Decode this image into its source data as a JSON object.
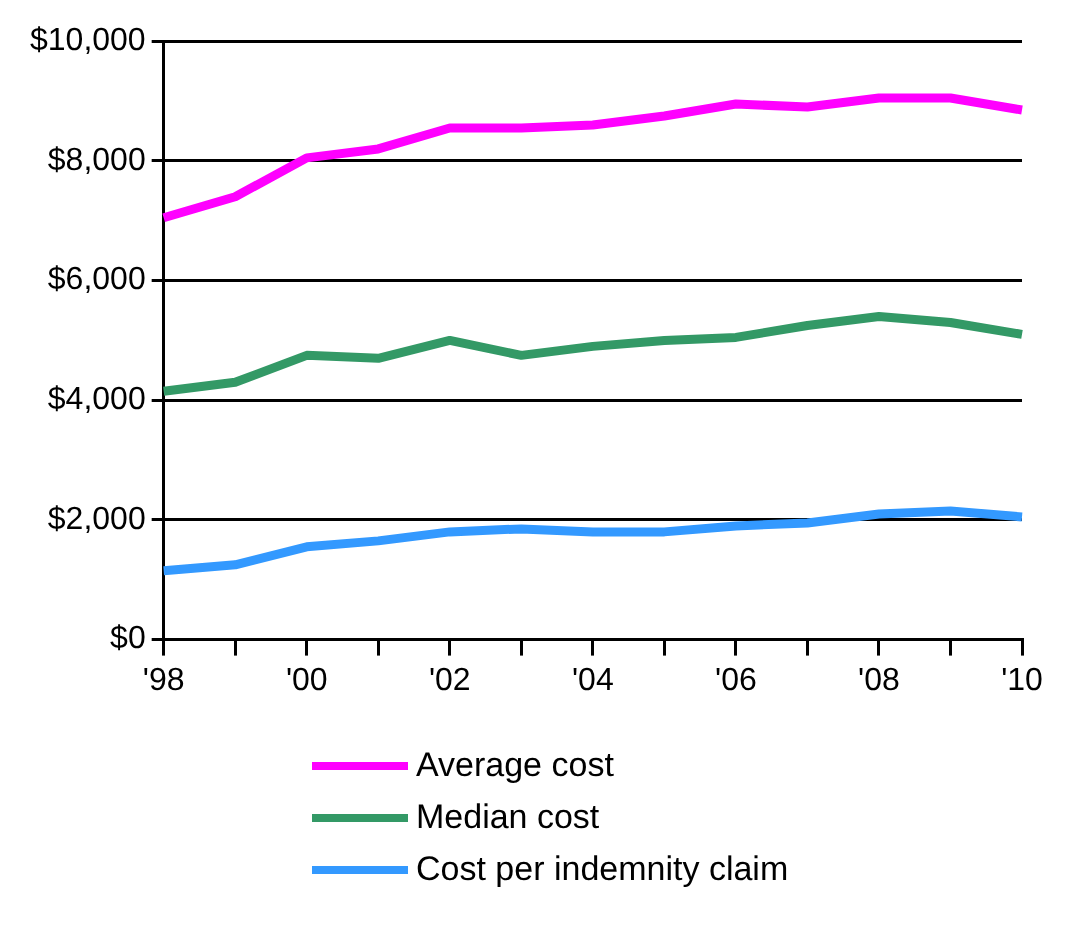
{
  "chart_data": {
    "type": "line",
    "categories": [
      "'98",
      null,
      "'00",
      null,
      "'02",
      null,
      "'04",
      null,
      "'06",
      null,
      "'08",
      null,
      "'10"
    ],
    "series": [
      {
        "name": "Average cost",
        "color": "#ff00ff",
        "values": [
          7050,
          7400,
          8050,
          8200,
          8550,
          8550,
          8600,
          8750,
          8950,
          8900,
          9050,
          9050,
          8850
        ]
      },
      {
        "name": "Median cost",
        "color": "#339966",
        "values": [
          4150,
          4300,
          4750,
          4700,
          5000,
          4750,
          4900,
          5000,
          5050,
          5250,
          5400,
          5300,
          5100
        ]
      },
      {
        "name": "Cost per indemnity claim",
        "color": "#3399ff",
        "values": [
          1150,
          1250,
          1550,
          1650,
          1800,
          1850,
          1800,
          1800,
          1900,
          1950,
          2100,
          2150,
          2050
        ]
      }
    ],
    "ylim": [
      0,
      10000
    ],
    "yticks": [
      {
        "value": 0,
        "label": "$0"
      },
      {
        "value": 2000,
        "label": "$2,000"
      },
      {
        "value": 4000,
        "label": "$4,000"
      },
      {
        "value": 6000,
        "label": "$6,000"
      },
      {
        "value": 8000,
        "label": "$8,000"
      },
      {
        "value": 10000,
        "label": "$10,000"
      }
    ],
    "grid": "y",
    "legend": "bottom",
    "marker": "none",
    "line_style": "solid"
  }
}
